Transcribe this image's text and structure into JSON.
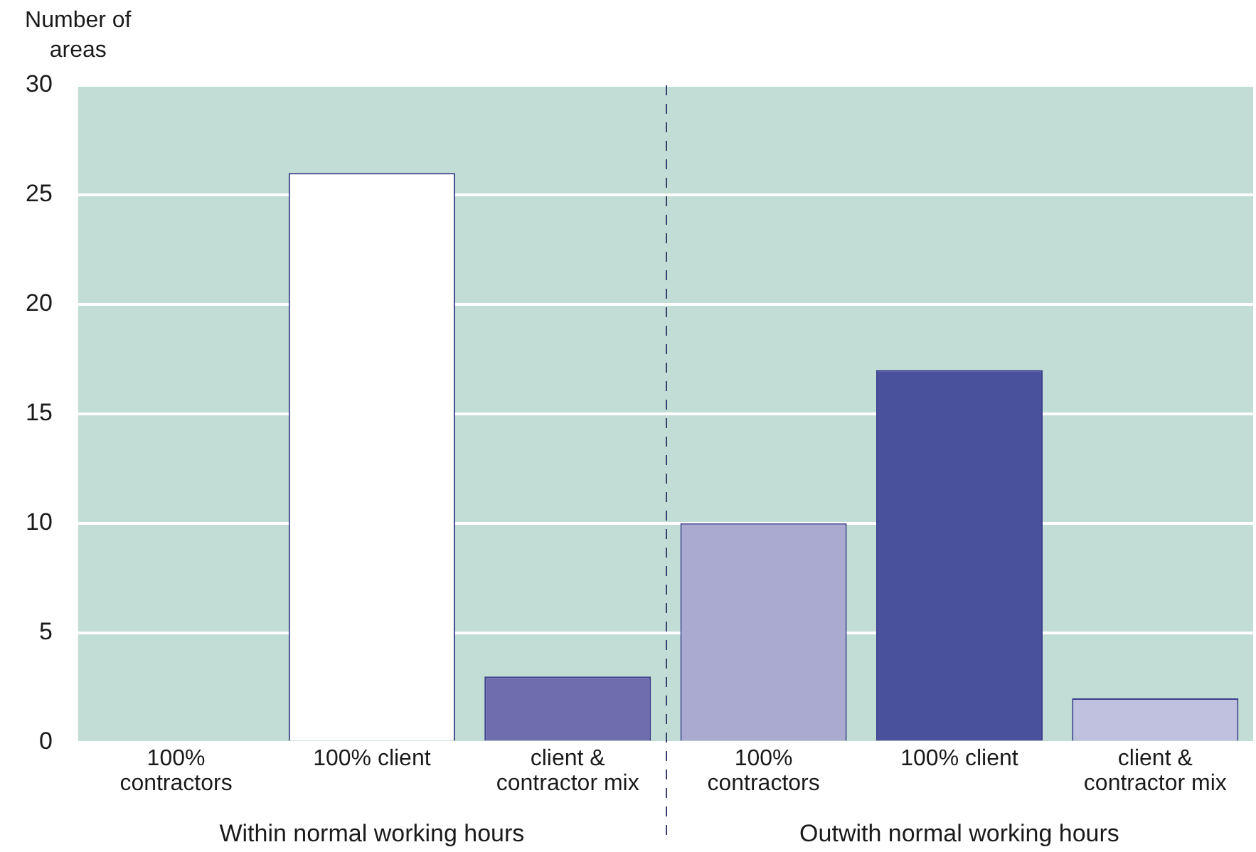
{
  "chart_data": {
    "type": "bar",
    "ylabel": "Number of areas",
    "categories": [
      "100% contractors",
      "100% client",
      "client & contractor mix",
      "100% contractors",
      "100% client",
      "client & contractor mix"
    ],
    "values": [
      0,
      26,
      3,
      10,
      17,
      2
    ],
    "colors": [
      "#ffffff",
      "#ffffff",
      "#6e6eae",
      "#aaaad0",
      "#4a519c",
      "#c0c0df"
    ],
    "ylim": [
      0,
      30
    ],
    "yticks": [
      0,
      5,
      10,
      15,
      20,
      25,
      30
    ],
    "grid": "y",
    "legend": false,
    "annotations": [
      "Within normal working hours",
      "Outwith normal working hours"
    ]
  }
}
